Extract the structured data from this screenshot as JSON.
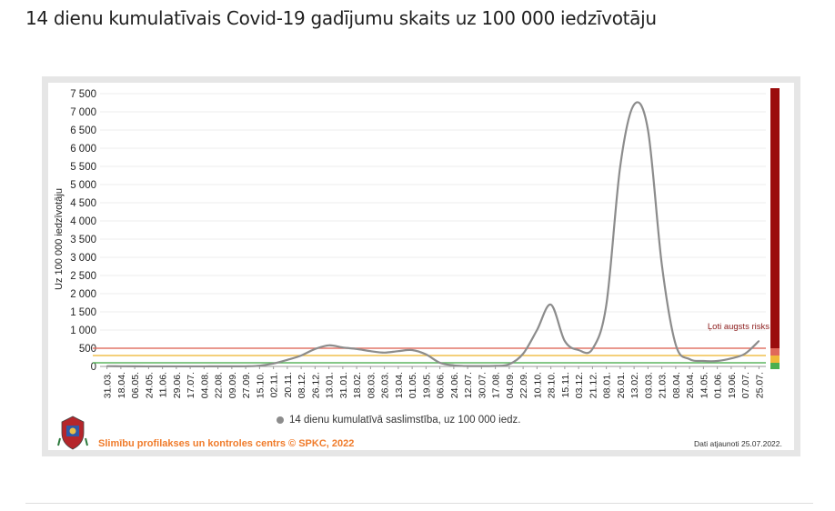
{
  "title": "14 dienu kumulatīvais Covid-19 gadījumu skaits uz 100 000 iedzīvotāju",
  "footer": {
    "organization": "Slimību profilakses un kontroles centrs © SPKC, 2022",
    "updated": "Dati atjaunoti 25.07.2022."
  },
  "colors": {
    "series": "#8c8c8c",
    "risk_bar": "#9b0d0d",
    "risk_line": "#e0685a",
    "low_line": "#4caf50",
    "accent": "#f07b2a"
  },
  "chart_data": {
    "type": "line",
    "title": "14 dienu kumulatīvais Covid-19 gadījumu skaits uz 100 000 iedzīvotāju",
    "xlabel": "",
    "ylabel": "Uz 100 000 iedzīvotāju",
    "ylim": [
      0,
      7500
    ],
    "yticks": [
      "7 500",
      "7 000",
      "6 500",
      "6 000",
      "5 500",
      "5 000",
      "4 500",
      "4 000",
      "3 500",
      "3 000",
      "2 500",
      "2 000",
      "1 500",
      "1 000",
      "500",
      "0"
    ],
    "ytick_values": [
      7500,
      7000,
      6500,
      6000,
      5500,
      5000,
      4500,
      4000,
      3500,
      3000,
      2500,
      2000,
      1500,
      1000,
      500,
      0
    ],
    "categories": [
      "31.03.",
      "18.04.",
      "06.05.",
      "24.05.",
      "11.06.",
      "29.06.",
      "17.07.",
      "04.08.",
      "22.08.",
      "09.09.",
      "27.09.",
      "15.10.",
      "02.11.",
      "20.11.",
      "08.12.",
      "26.12.",
      "13.01.",
      "31.01.",
      "18.02.",
      "08.03.",
      "26.03.",
      "13.04.",
      "01.05.",
      "19.05.",
      "06.06.",
      "24.06.",
      "12.07.",
      "30.07.",
      "17.08.",
      "04.09.",
      "22.09.",
      "10.10.",
      "28.10.",
      "15.11.",
      "03.12.",
      "21.12.",
      "08.01.",
      "26.01.",
      "13.02.",
      "03.03.",
      "21.03.",
      "08.04.",
      "26.04.",
      "14.05.",
      "01.06.",
      "19.06.",
      "07.07.",
      "25.07."
    ],
    "grid": true,
    "legend_position": "bottom",
    "series": [
      {
        "name": "14 dienu kumulatīvā saslimstība, uz 100 000 iedz.",
        "values": [
          8,
          5,
          3,
          2,
          1,
          1,
          1,
          2,
          3,
          3,
          5,
          20,
          80,
          180,
          300,
          480,
          580,
          520,
          480,
          420,
          380,
          420,
          450,
          330,
          100,
          30,
          10,
          10,
          15,
          60,
          350,
          1000,
          1700,
          700,
          450,
          480,
          1700,
          5500,
          7200,
          6500,
          2800,
          600,
          200,
          150,
          150,
          220,
          350,
          700
        ]
      }
    ],
    "annotations": [
      {
        "label": "Ļoti augsts risks",
        "value": 500
      }
    ],
    "thresholds": [
      {
        "value": 500,
        "color": "#e0685a"
      },
      {
        "value": 300,
        "color": "#f0b93a"
      },
      {
        "value": 100,
        "color": "#4caf50"
      }
    ]
  }
}
